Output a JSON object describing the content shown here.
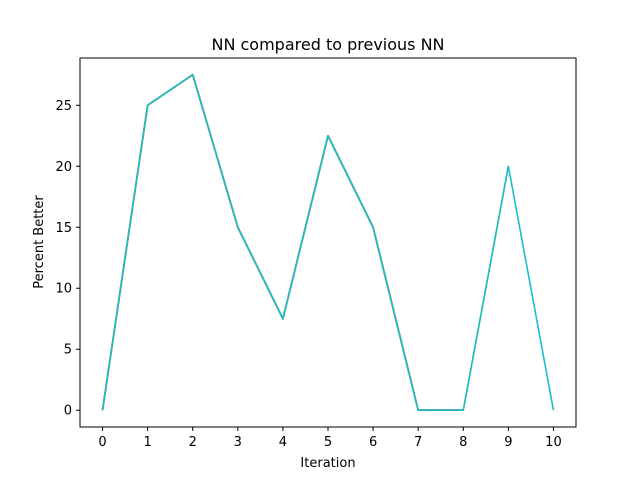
{
  "chart_data": {
    "type": "line",
    "title": "NN compared to previous NN",
    "xlabel": "Iteration",
    "ylabel": "Percent Better",
    "xlim": [
      -0.5,
      10.5
    ],
    "ylim": [
      -1.375,
      28.875
    ],
    "xticks": [
      0,
      1,
      2,
      3,
      4,
      5,
      6,
      7,
      8,
      9,
      10
    ],
    "xtick_labels": [
      "0",
      "1",
      "2",
      "3",
      "4",
      "5",
      "6",
      "7",
      "8",
      "9",
      "10"
    ],
    "yticks": [
      0,
      5,
      10,
      15,
      20,
      25
    ],
    "ytick_labels": [
      "0",
      "5",
      "10",
      "15",
      "20",
      "25"
    ],
    "grid": false,
    "series": [
      {
        "color": "#1f77b4",
        "x": [
          0,
          1,
          2,
          3,
          4,
          5,
          6,
          7
        ],
        "y": [
          0,
          25,
          27.5,
          15,
          7.5,
          22.5,
          15,
          0
        ]
      },
      {
        "color": "#ff7f0e",
        "x": [
          0,
          1,
          2,
          3,
          4,
          5,
          6,
          7
        ],
        "y": [
          0,
          25,
          27.5,
          15,
          7.5,
          22.5,
          15,
          0
        ]
      },
      {
        "color": "#2ca02c",
        "x": [
          0,
          1,
          2,
          3,
          4,
          5,
          6,
          7,
          8
        ],
        "y": [
          0,
          25,
          27.5,
          15,
          7.5,
          22.5,
          15,
          0,
          0
        ]
      },
      {
        "color": "#d62728",
        "x": [
          0,
          1,
          2,
          3,
          4,
          5,
          6,
          7,
          8
        ],
        "y": [
          0,
          25,
          27.5,
          15,
          7.5,
          22.5,
          15,
          0,
          0
        ]
      },
      {
        "color": "#9467bd",
        "x": [
          0,
          1,
          2,
          3,
          4,
          5,
          6,
          7,
          8
        ],
        "y": [
          0,
          25,
          27.5,
          15,
          7.5,
          22.5,
          15,
          0,
          0
        ]
      },
      {
        "color": "#8c564b",
        "x": [
          0,
          1,
          2,
          3,
          4,
          5,
          6,
          7,
          8
        ],
        "y": [
          0,
          25,
          27.5,
          15,
          7.5,
          22.5,
          15,
          0,
          0
        ]
      },
      {
        "color": "#e377c2",
        "x": [
          0,
          1,
          2,
          3,
          4,
          5,
          6,
          7,
          8
        ],
        "y": [
          0,
          25,
          27.5,
          15,
          7.5,
          22.5,
          15,
          0,
          0
        ]
      },
      {
        "color": "#7f7f7f",
        "x": [
          0,
          1,
          2,
          3,
          4,
          5,
          6,
          7,
          8
        ],
        "y": [
          0,
          25,
          27.5,
          15,
          7.5,
          22.5,
          15,
          0,
          0
        ]
      },
      {
        "color": "#bcbd22",
        "x": [
          0,
          1,
          2,
          3,
          4,
          5,
          6,
          7,
          8,
          9
        ],
        "y": [
          0,
          25,
          27.5,
          15,
          7.5,
          22.5,
          15,
          0,
          0,
          20
        ]
      },
      {
        "color": "#17becf",
        "x": [
          0,
          1,
          2,
          3,
          4,
          5,
          6,
          7,
          8,
          9,
          10
        ],
        "y": [
          0,
          25,
          27.5,
          15,
          7.5,
          22.5,
          15,
          0,
          0,
          20,
          0
        ]
      }
    ]
  }
}
